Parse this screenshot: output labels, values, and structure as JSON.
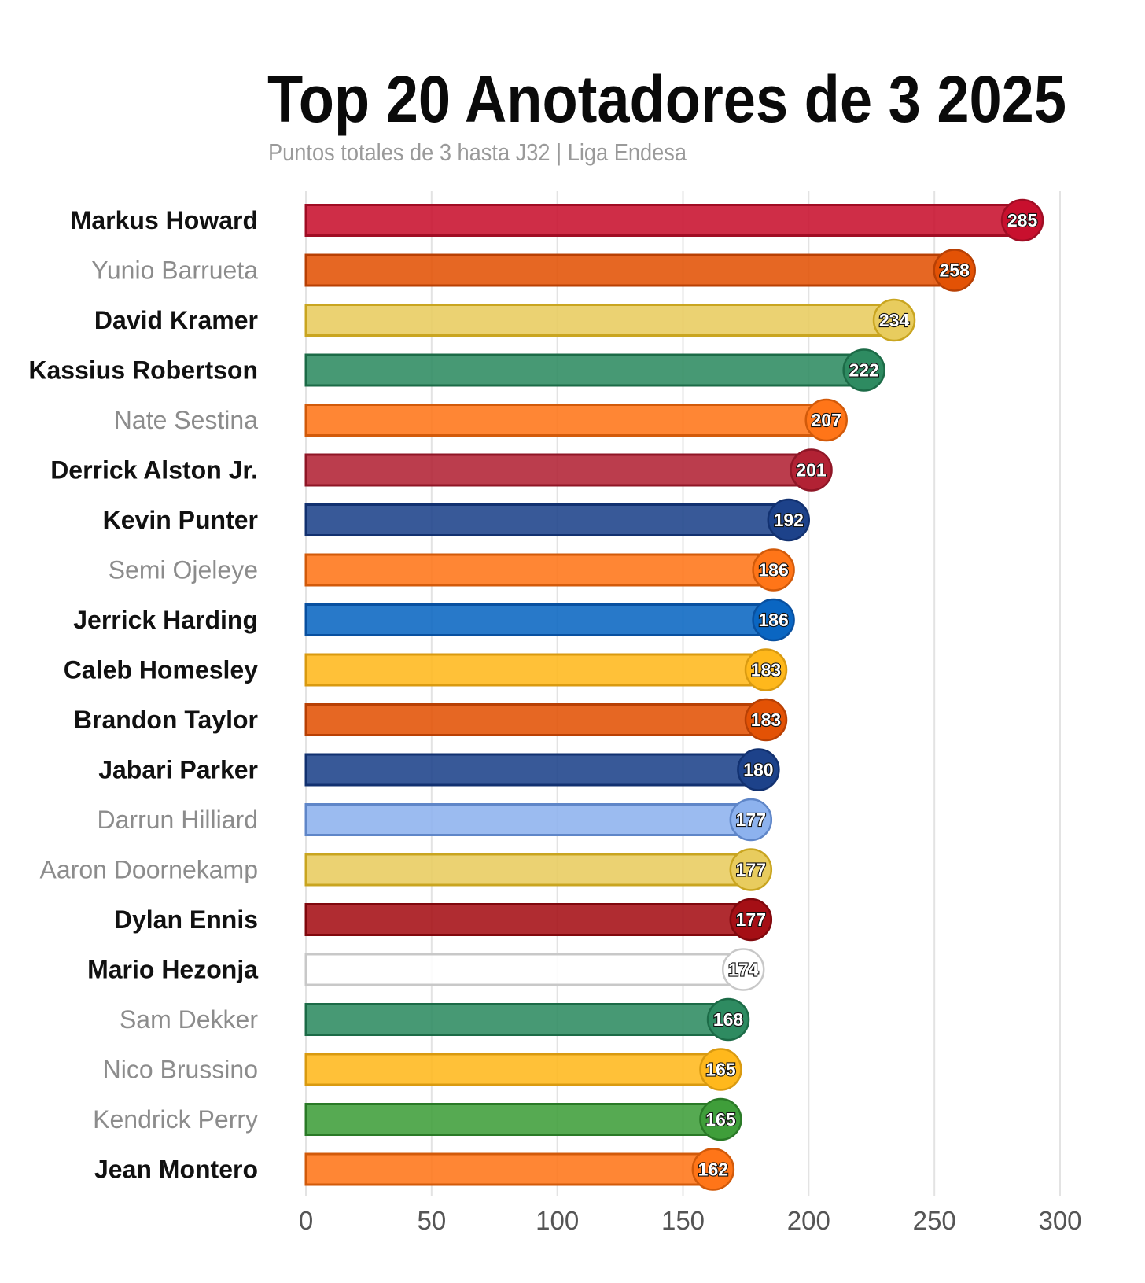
{
  "chart_data": {
    "type": "bar",
    "orientation": "horizontal",
    "title": "Top 20 Anotadores de 3 2025",
    "subtitle": "Puntos totales de 3 hasta J32 | Liga Endesa",
    "xlabel": "",
    "ylabel": "",
    "xlim": [
      0,
      300
    ],
    "xticks": [
      0,
      50,
      100,
      150,
      200,
      250,
      300
    ],
    "grid": "vertical",
    "legend": "none",
    "bars": [
      {
        "name": "Markus Howard",
        "value": 285,
        "highlight": true,
        "fill": "#c8102e",
        "edge": "#a00d24"
      },
      {
        "name": "Yunio Barrueta",
        "value": 258,
        "highlight": false,
        "fill": "#e35205",
        "edge": "#b84004"
      },
      {
        "name": "David Kramer",
        "value": 234,
        "highlight": true,
        "fill": "#e8cc5e",
        "edge": "#c9a520"
      },
      {
        "name": "Kassius Robertson",
        "value": 222,
        "highlight": true,
        "fill": "#2e8b61",
        "edge": "#1c6b47"
      },
      {
        "name": "Nate Sestina",
        "value": 207,
        "highlight": false,
        "fill": "#ff7518",
        "edge": "#d25a0a"
      },
      {
        "name": "Derrick Alston Jr.",
        "value": 201,
        "highlight": true,
        "fill": "#b22234",
        "edge": "#8f1626"
      },
      {
        "name": "Kevin Punter",
        "value": 192,
        "highlight": true,
        "fill": "#1d428a",
        "edge": "#123170"
      },
      {
        "name": "Semi Ojeleye",
        "value": 186,
        "highlight": false,
        "fill": "#ff7518",
        "edge": "#d25a0a"
      },
      {
        "name": "Jerrick Harding",
        "value": 186,
        "highlight": true,
        "fill": "#0a66c2",
        "edge": "#0850a0"
      },
      {
        "name": "Caleb Homesley",
        "value": 183,
        "highlight": true,
        "fill": "#ffb81c",
        "edge": "#d99a10"
      },
      {
        "name": "Brandon Taylor",
        "value": 183,
        "highlight": true,
        "fill": "#e35205",
        "edge": "#b84004"
      },
      {
        "name": "Jabari Parker",
        "value": 180,
        "highlight": true,
        "fill": "#1d428a",
        "edge": "#123170"
      },
      {
        "name": "Darrun Hilliard",
        "value": 177,
        "highlight": false,
        "fill": "#8db2ee",
        "edge": "#5f86c8"
      },
      {
        "name": "Aaron Doornekamp",
        "value": 177,
        "highlight": false,
        "fill": "#e8cc5e",
        "edge": "#c9a520"
      },
      {
        "name": "Dylan Ennis",
        "value": 177,
        "highlight": true,
        "fill": "#a50f15",
        "edge": "#80080d"
      },
      {
        "name": "Mario Hezonja",
        "value": 174,
        "highlight": true,
        "fill": "#ffffff",
        "edge": "#c8c8c8"
      },
      {
        "name": "Sam Dekker",
        "value": 168,
        "highlight": false,
        "fill": "#2e8b61",
        "edge": "#1c6b47"
      },
      {
        "name": "Nico Brussino",
        "value": 165,
        "highlight": false,
        "fill": "#ffb81c",
        "edge": "#d99a10"
      },
      {
        "name": "Kendrick Perry",
        "value": 165,
        "highlight": false,
        "fill": "#3f9e3a",
        "edge": "#2a7a27"
      },
      {
        "name": "Jean Montero",
        "value": 162,
        "highlight": true,
        "fill": "#ff7518",
        "edge": "#d25a0a"
      }
    ]
  }
}
